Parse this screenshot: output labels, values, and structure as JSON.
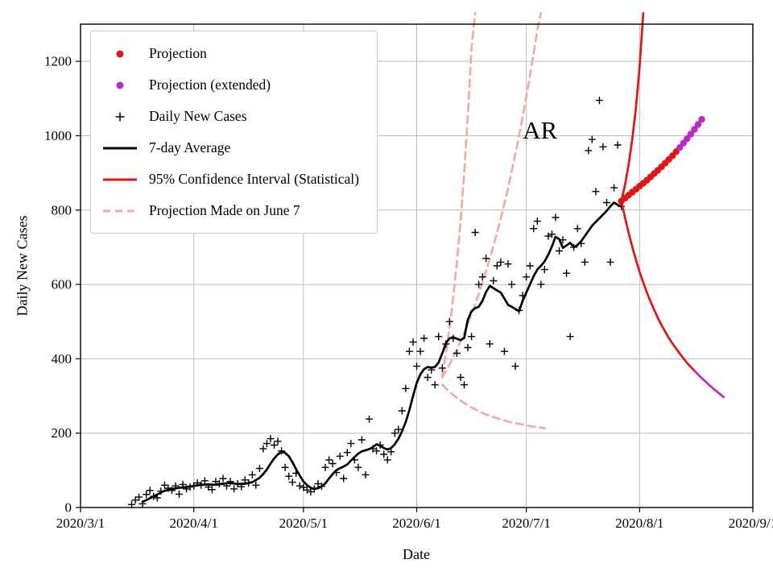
{
  "chart_data": {
    "type": "line",
    "title": "",
    "xlabel": "Date",
    "ylabel": "Daily New Cases",
    "annotation": {
      "text": "AR",
      "day": 121,
      "value": 992
    },
    "x_axis": {
      "range_days": [
        0,
        184
      ],
      "tick_days": [
        0,
        31,
        61,
        92,
        122,
        153,
        184
      ],
      "tick_labels": [
        "2020/3/1",
        "2020/4/1",
        "2020/5/1",
        "2020/6/1",
        "2020/7/1",
        "2020/8/1",
        "2020/9/1"
      ]
    },
    "y_axis": {
      "range": [
        0,
        1300
      ],
      "ticks": [
        0,
        200,
        400,
        600,
        800,
        1000,
        1200
      ]
    },
    "colors": {
      "projection": "#e41414",
      "projection_extended": "#bb29cc",
      "daily_cases": "#000000",
      "average": "#000000",
      "confidence": "#e41414",
      "june7": "#f8a5a5",
      "grid": "#bdbdbd",
      "axis": "#000000"
    },
    "grid": true,
    "legend_position": "upper left",
    "series": {
      "daily_new_cases": [
        [
          14,
          8
        ],
        [
          15,
          20
        ],
        [
          16,
          28
        ],
        [
          17,
          10
        ],
        [
          18,
          35
        ],
        [
          19,
          46
        ],
        [
          20,
          30
        ],
        [
          21,
          26
        ],
        [
          22,
          44
        ],
        [
          23,
          60
        ],
        [
          24,
          52
        ],
        [
          25,
          46
        ],
        [
          26,
          58
        ],
        [
          27,
          36
        ],
        [
          28,
          62
        ],
        [
          29,
          50
        ],
        [
          30,
          55
        ],
        [
          31,
          58
        ],
        [
          32,
          66
        ],
        [
          33,
          60
        ],
        [
          34,
          72
        ],
        [
          35,
          55
        ],
        [
          36,
          48
        ],
        [
          37,
          70
        ],
        [
          38,
          64
        ],
        [
          39,
          78
        ],
        [
          40,
          58
        ],
        [
          41,
          70
        ],
        [
          42,
          50
        ],
        [
          43,
          64
        ],
        [
          44,
          56
        ],
        [
          45,
          74
        ],
        [
          46,
          66
        ],
        [
          47,
          88
        ],
        [
          48,
          60
        ],
        [
          49,
          105
        ],
        [
          50,
          158
        ],
        [
          51,
          172
        ],
        [
          52,
          185
        ],
        [
          53,
          168
        ],
        [
          54,
          178
        ],
        [
          55,
          152
        ],
        [
          56,
          108
        ],
        [
          57,
          84
        ],
        [
          58,
          68
        ],
        [
          59,
          92
        ],
        [
          60,
          58
        ],
        [
          61,
          54
        ],
        [
          62,
          47
        ],
        [
          63,
          42
        ],
        [
          64,
          50
        ],
        [
          65,
          64
        ],
        [
          66,
          57
        ],
        [
          67,
          108
        ],
        [
          68,
          128
        ],
        [
          69,
          118
        ],
        [
          70,
          94
        ],
        [
          71,
          138
        ],
        [
          72,
          78
        ],
        [
          73,
          148
        ],
        [
          74,
          172
        ],
        [
          75,
          128
        ],
        [
          76,
          108
        ],
        [
          77,
          182
        ],
        [
          78,
          88
        ],
        [
          79,
          238
        ],
        [
          80,
          158
        ],
        [
          81,
          152
        ],
        [
          82,
          168
        ],
        [
          83,
          143
        ],
        [
          84,
          128
        ],
        [
          85,
          150
        ],
        [
          86,
          200
        ],
        [
          87,
          210
        ],
        [
          88,
          260
        ],
        [
          89,
          320
        ],
        [
          90,
          420
        ],
        [
          91,
          445
        ],
        [
          92,
          380
        ],
        [
          93,
          420
        ],
        [
          94,
          455
        ],
        [
          95,
          350
        ],
        [
          96,
          370
        ],
        [
          97,
          330
        ],
        [
          98,
          460
        ],
        [
          99,
          375
        ],
        [
          100,
          440
        ],
        [
          101,
          500
        ],
        [
          102,
          455
        ],
        [
          103,
          415
        ],
        [
          104,
          350
        ],
        [
          105,
          330
        ],
        [
          106,
          430
        ],
        [
          107,
          460
        ],
        [
          108,
          740
        ],
        [
          109,
          600
        ],
        [
          110,
          620
        ],
        [
          111,
          670
        ],
        [
          112,
          440
        ],
        [
          113,
          610
        ],
        [
          114,
          650
        ],
        [
          115,
          660
        ],
        [
          116,
          420
        ],
        [
          117,
          655
        ],
        [
          118,
          600
        ],
        [
          119,
          380
        ],
        [
          120,
          530
        ],
        [
          121,
          570
        ],
        [
          122,
          620
        ],
        [
          123,
          650
        ],
        [
          124,
          750
        ],
        [
          125,
          770
        ],
        [
          126,
          600
        ],
        [
          127,
          640
        ],
        [
          128,
          730
        ],
        [
          129,
          735
        ],
        [
          130,
          780
        ],
        [
          131,
          690
        ],
        [
          132,
          720
        ],
        [
          133,
          630
        ],
        [
          134,
          460
        ],
        [
          135,
          700
        ],
        [
          136,
          750
        ],
        [
          137,
          710
        ],
        [
          138,
          660
        ],
        [
          139,
          960
        ],
        [
          140,
          990
        ],
        [
          141,
          850
        ],
        [
          142,
          1095
        ],
        [
          143,
          970
        ],
        [
          144,
          820
        ],
        [
          145,
          660
        ],
        [
          146,
          860
        ],
        [
          147,
          975
        ],
        [
          148,
          810
        ]
      ],
      "seven_day_average": [
        [
          17,
          15
        ],
        [
          19,
          25
        ],
        [
          21,
          35
        ],
        [
          23,
          45
        ],
        [
          25,
          50
        ],
        [
          27,
          53
        ],
        [
          29,
          55
        ],
        [
          31,
          58
        ],
        [
          33,
          61
        ],
        [
          35,
          62
        ],
        [
          37,
          61
        ],
        [
          39,
          64
        ],
        [
          41,
          66
        ],
        [
          43,
          63
        ],
        [
          45,
          64
        ],
        [
          47,
          68
        ],
        [
          49,
          80
        ],
        [
          50,
          90
        ],
        [
          51,
          102
        ],
        [
          52,
          118
        ],
        [
          53,
          132
        ],
        [
          54,
          143
        ],
        [
          55,
          150
        ],
        [
          56,
          147
        ],
        [
          57,
          138
        ],
        [
          58,
          122
        ],
        [
          59,
          103
        ],
        [
          60,
          86
        ],
        [
          61,
          70
        ],
        [
          62,
          60
        ],
        [
          63,
          53
        ],
        [
          64,
          50
        ],
        [
          65,
          52
        ],
        [
          66,
          57
        ],
        [
          67,
          65
        ],
        [
          68,
          78
        ],
        [
          69,
          90
        ],
        [
          70,
          100
        ],
        [
          71,
          106
        ],
        [
          72,
          110
        ],
        [
          73,
          116
        ],
        [
          74,
          126
        ],
        [
          75,
          136
        ],
        [
          76,
          145
        ],
        [
          77,
          151
        ],
        [
          78,
          154
        ],
        [
          79,
          157
        ],
        [
          80,
          162
        ],
        [
          81,
          170
        ],
        [
          82,
          166
        ],
        [
          83,
          160
        ],
        [
          84,
          156
        ],
        [
          85,
          160
        ],
        [
          86,
          170
        ],
        [
          87,
          185
        ],
        [
          88,
          205
        ],
        [
          89,
          230
        ],
        [
          90,
          262
        ],
        [
          91,
          300
        ],
        [
          92,
          335
        ],
        [
          93,
          358
        ],
        [
          94,
          372
        ],
        [
          95,
          378
        ],
        [
          96,
          376
        ],
        [
          97,
          378
        ],
        [
          98,
          390
        ],
        [
          99,
          415
        ],
        [
          100,
          442
        ],
        [
          101,
          455
        ],
        [
          102,
          458
        ],
        [
          103,
          454
        ],
        [
          104,
          450
        ],
        [
          105,
          456
        ],
        [
          106,
          505
        ],
        [
          107,
          528
        ],
        [
          108,
          536
        ],
        [
          109,
          540
        ],
        [
          110,
          556
        ],
        [
          111,
          580
        ],
        [
          112,
          596
        ],
        [
          113,
          590
        ],
        [
          114,
          584
        ],
        [
          115,
          578
        ],
        [
          116,
          562
        ],
        [
          117,
          545
        ],
        [
          118,
          540
        ],
        [
          119,
          534
        ],
        [
          120,
          528
        ],
        [
          121,
          556
        ],
        [
          122,
          578
        ],
        [
          123,
          600
        ],
        [
          124,
          622
        ],
        [
          125,
          640
        ],
        [
          126,
          650
        ],
        [
          127,
          662
        ],
        [
          128,
          680
        ],
        [
          129,
          702
        ],
        [
          130,
          728
        ],
        [
          131,
          722
        ],
        [
          132,
          698
        ],
        [
          133,
          705
        ],
        [
          134,
          712
        ],
        [
          135,
          700
        ],
        [
          136,
          706
        ],
        [
          137,
          716
        ],
        [
          138,
          730
        ],
        [
          139,
          744
        ],
        [
          140,
          758
        ],
        [
          141,
          768
        ],
        [
          142,
          778
        ],
        [
          143,
          788
        ],
        [
          144,
          798
        ],
        [
          145,
          810
        ],
        [
          146,
          820
        ],
        [
          147,
          814
        ],
        [
          148,
          810
        ]
      ],
      "projection": [
        [
          148,
          824
        ],
        [
          149,
          832
        ],
        [
          150,
          840
        ],
        [
          151,
          848
        ],
        [
          152,
          856
        ],
        [
          153,
          864
        ],
        [
          154,
          872
        ],
        [
          155,
          880
        ],
        [
          156,
          889
        ],
        [
          157,
          898
        ],
        [
          158,
          907
        ],
        [
          159,
          916
        ],
        [
          160,
          926
        ],
        [
          161,
          936
        ],
        [
          162,
          946
        ],
        [
          163,
          957
        ]
      ],
      "projection_extended": [
        [
          164,
          968
        ],
        [
          165,
          980
        ],
        [
          166,
          992
        ],
        [
          167,
          1004
        ],
        [
          168,
          1017
        ],
        [
          169,
          1030
        ],
        [
          170,
          1044
        ]
      ],
      "ci_upper": [
        [
          148,
          824
        ],
        [
          149,
          868
        ],
        [
          150,
          922
        ],
        [
          151,
          990
        ],
        [
          152,
          1075
        ],
        [
          153,
          1185
        ],
        [
          154,
          1330
        ]
      ],
      "ci_lower": [
        [
          148,
          824
        ],
        [
          149,
          780
        ],
        [
          150,
          739
        ],
        [
          151,
          701
        ],
        [
          152,
          666
        ],
        [
          153,
          634
        ],
        [
          154,
          605
        ],
        [
          155,
          578
        ],
        [
          156,
          554
        ],
        [
          157,
          531
        ],
        [
          158,
          510
        ],
        [
          159,
          491
        ],
        [
          160,
          473
        ],
        [
          161,
          456
        ],
        [
          162,
          441
        ],
        [
          163,
          427
        ],
        [
          164,
          414
        ],
        [
          165,
          401
        ],
        [
          166,
          389
        ],
        [
          167,
          378
        ],
        [
          168,
          368
        ]
      ],
      "ci_lower_extended": [
        [
          168,
          368
        ],
        [
          169,
          358
        ],
        [
          170,
          348
        ],
        [
          171,
          339
        ],
        [
          172,
          330
        ],
        [
          173,
          321
        ],
        [
          174,
          313
        ],
        [
          175,
          305
        ],
        [
          176,
          297
        ]
      ],
      "june7_upper": [
        [
          99,
          355
        ],
        [
          100,
          415
        ],
        [
          101,
          485
        ],
        [
          102,
          565
        ],
        [
          103,
          660
        ],
        [
          104,
          770
        ],
        [
          105,
          900
        ],
        [
          106,
          1055
        ],
        [
          107,
          1235
        ],
        [
          108,
          1330
        ]
      ],
      "june7_center": [
        [
          99,
          350
        ],
        [
          101,
          385
        ],
        [
          103,
          425
        ],
        [
          105,
          470
        ],
        [
          107,
          520
        ],
        [
          109,
          575
        ],
        [
          111,
          636
        ],
        [
          113,
          703
        ],
        [
          115,
          777
        ],
        [
          117,
          859
        ],
        [
          119,
          950
        ],
        [
          121,
          1050
        ],
        [
          123,
          1161
        ],
        [
          125,
          1284
        ],
        [
          126,
          1330
        ]
      ],
      "june7_lower": [
        [
          99,
          330
        ],
        [
          101,
          311
        ],
        [
          103,
          295
        ],
        [
          105,
          281
        ],
        [
          107,
          269
        ],
        [
          109,
          259
        ],
        [
          111,
          250
        ],
        [
          113,
          243
        ],
        [
          115,
          237
        ],
        [
          117,
          231
        ],
        [
          119,
          227
        ],
        [
          121,
          223
        ],
        [
          123,
          219
        ],
        [
          125,
          216
        ],
        [
          127,
          213
        ]
      ]
    }
  },
  "legend": {
    "items": [
      {
        "label": "Projection",
        "marker": "dot",
        "color": "#e41414"
      },
      {
        "label": "Projection (extended)",
        "marker": "dot",
        "color": "#bb29cc"
      },
      {
        "label": "Daily New Cases",
        "marker": "plus",
        "color": "#000000"
      },
      {
        "label": "7-day Average",
        "marker": "line",
        "color": "#000000"
      },
      {
        "label": "95% Confidence Interval (Statistical)",
        "marker": "line",
        "color": "#e41414"
      },
      {
        "label": "Projection Made on June 7",
        "marker": "dashed",
        "color": "#f8a5a5"
      }
    ]
  }
}
